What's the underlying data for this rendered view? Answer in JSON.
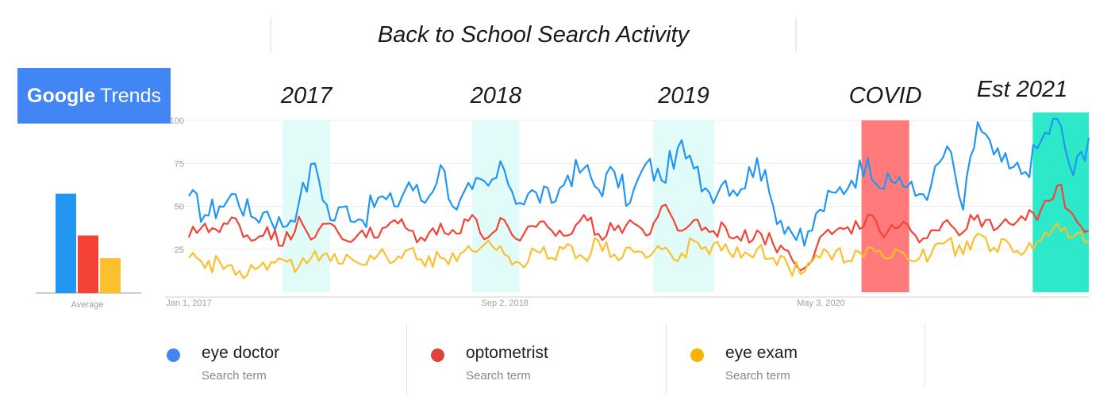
{
  "header": {
    "title": "Back to School Search Activity"
  },
  "logo": {
    "google": "Google",
    "trends": "Trends"
  },
  "chart_data": [
    {
      "type": "bar",
      "xlabel": "Average",
      "series": [
        {
          "name": "eye doctor",
          "color": "#2196f3",
          "value": 57
        },
        {
          "name": "optometrist",
          "color": "#f44336",
          "value": 33
        },
        {
          "name": "eye exam",
          "color": "#fbc02d",
          "value": 20
        }
      ],
      "ylim": [
        0,
        100
      ]
    },
    {
      "type": "line",
      "x_start": "2017-01-01",
      "x_end": "2021-10-01",
      "ylim": [
        0,
        100
      ],
      "yticks": [
        25,
        50,
        75,
        100
      ],
      "grid": true,
      "xtick_labels": [
        {
          "date": "2017-01-01",
          "label": "Jan 1, 2017"
        },
        {
          "date": "2018-09-02",
          "label": "Sep 2, 2018"
        },
        {
          "date": "2020-05-03",
          "label": "May 3, 2020"
        }
      ],
      "highlights": [
        {
          "label": "2017",
          "start": "2017-07-01",
          "end": "2017-09-30",
          "color": "#e0fbf8"
        },
        {
          "label": "2018",
          "start": "2018-07-01",
          "end": "2018-09-30",
          "color": "#e0fbf8"
        },
        {
          "label": "2019",
          "start": "2019-06-15",
          "end": "2019-10-10",
          "color": "#e0fbf8"
        },
        {
          "label": "COVID",
          "start": "2020-07-20",
          "end": "2020-10-20",
          "color": "#ff7b7b"
        },
        {
          "label": "Est 2021",
          "start": "2021-06-15",
          "end": "2021-10-01",
          "color": "#2de8c9"
        }
      ],
      "series": [
        {
          "name": "eye doctor",
          "color": "#2196f3",
          "points": [
            [
              "2017-01-01",
              56
            ],
            [
              "2017-02-01",
              45
            ],
            [
              "2017-03-01",
              50
            ],
            [
              "2017-04-01",
              57
            ],
            [
              "2017-05-01",
              44
            ],
            [
              "2017-06-01",
              47
            ],
            [
              "2017-07-01",
              38
            ],
            [
              "2017-08-01",
              52
            ],
            [
              "2017-09-01",
              75
            ],
            [
              "2017-10-01",
              42
            ],
            [
              "2017-11-01",
              50
            ],
            [
              "2017-12-01",
              42
            ],
            [
              "2018-01-01",
              55
            ],
            [
              "2018-02-01",
              50
            ],
            [
              "2018-03-01",
              64
            ],
            [
              "2018-04-01",
              52
            ],
            [
              "2018-05-01",
              74
            ],
            [
              "2018-06-01",
              48
            ],
            [
              "2018-07-01",
              60
            ],
            [
              "2018-08-01",
              62
            ],
            [
              "2018-09-01",
              71
            ],
            [
              "2018-10-01",
              52
            ],
            [
              "2018-11-01",
              58
            ],
            [
              "2018-12-01",
              52
            ],
            [
              "2019-01-01",
              68
            ],
            [
              "2019-02-01",
              72
            ],
            [
              "2019-03-01",
              60
            ],
            [
              "2019-04-01",
              70
            ],
            [
              "2019-05-01",
              52
            ],
            [
              "2019-06-01",
              75
            ],
            [
              "2019-07-01",
              65
            ],
            [
              "2019-08-01",
              84
            ],
            [
              "2019-09-01",
              72
            ],
            [
              "2019-10-01",
              58
            ],
            [
              "2019-11-01",
              65
            ],
            [
              "2019-12-01",
              60
            ],
            [
              "2020-01-01",
              78
            ],
            [
              "2020-02-01",
              50
            ],
            [
              "2020-03-01",
              38
            ],
            [
              "2020-04-01",
              27
            ],
            [
              "2020-05-01",
              48
            ],
            [
              "2020-06-01",
              58
            ],
            [
              "2020-07-01",
              65
            ],
            [
              "2020-08-01",
              78
            ],
            [
              "2020-09-01",
              60
            ],
            [
              "2020-10-01",
              67
            ],
            [
              "2020-11-01",
              56
            ],
            [
              "2020-12-01",
              62
            ],
            [
              "2021-01-01",
              85
            ],
            [
              "2021-02-01",
              48
            ],
            [
              "2021-03-01",
              99
            ],
            [
              "2021-04-01",
              80
            ],
            [
              "2021-05-01",
              72
            ],
            [
              "2021-06-01",
              70
            ],
            [
              "2021-07-01",
              88
            ],
            [
              "2021-08-01",
              101
            ],
            [
              "2021-09-01",
              68
            ],
            [
              "2021-10-01",
              90
            ]
          ]
        },
        {
          "name": "optometrist",
          "color": "#f44336",
          "points": [
            [
              "2017-01-01",
              32
            ],
            [
              "2017-02-01",
              40
            ],
            [
              "2017-03-01",
              35
            ],
            [
              "2017-04-01",
              43
            ],
            [
              "2017-05-01",
              30
            ],
            [
              "2017-06-01",
              38
            ],
            [
              "2017-07-01",
              27
            ],
            [
              "2017-08-01",
              44
            ],
            [
              "2017-09-01",
              32
            ],
            [
              "2017-10-01",
              40
            ],
            [
              "2017-11-01",
              30
            ],
            [
              "2017-12-01",
              36
            ],
            [
              "2018-01-01",
              32
            ],
            [
              "2018-02-01",
              42
            ],
            [
              "2018-03-01",
              36
            ],
            [
              "2018-04-01",
              30
            ],
            [
              "2018-05-01",
              40
            ],
            [
              "2018-06-01",
              34
            ],
            [
              "2018-07-01",
              45
            ],
            [
              "2018-08-01",
              32
            ],
            [
              "2018-09-01",
              42
            ],
            [
              "2018-10-01",
              30
            ],
            [
              "2018-11-01",
              38
            ],
            [
              "2018-12-01",
              36
            ],
            [
              "2019-01-01",
              33
            ],
            [
              "2019-02-01",
              45
            ],
            [
              "2019-03-01",
              34
            ],
            [
              "2019-04-01",
              36
            ],
            [
              "2019-05-01",
              42
            ],
            [
              "2019-06-01",
              33
            ],
            [
              "2019-07-01",
              50
            ],
            [
              "2019-08-01",
              36
            ],
            [
              "2019-09-01",
              42
            ],
            [
              "2019-10-01",
              35
            ],
            [
              "2019-11-01",
              38
            ],
            [
              "2019-12-01",
              30
            ],
            [
              "2020-01-01",
              36
            ],
            [
              "2020-02-01",
              28
            ],
            [
              "2020-03-01",
              24
            ],
            [
              "2020-04-01",
              14
            ],
            [
              "2020-05-01",
              32
            ],
            [
              "2020-06-01",
              36
            ],
            [
              "2020-07-01",
              34
            ],
            [
              "2020-08-01",
              45
            ],
            [
              "2020-09-01",
              32
            ],
            [
              "2020-10-01",
              38
            ],
            [
              "2020-11-01",
              33
            ],
            [
              "2020-12-01",
              36
            ],
            [
              "2021-01-01",
              42
            ],
            [
              "2021-02-01",
              35
            ],
            [
              "2021-03-01",
              45
            ],
            [
              "2021-04-01",
              36
            ],
            [
              "2021-05-01",
              40
            ],
            [
              "2021-06-01",
              42
            ],
            [
              "2021-07-01",
              48
            ],
            [
              "2021-08-01",
              62
            ],
            [
              "2021-09-01",
              45
            ],
            [
              "2021-10-01",
              36
            ]
          ]
        },
        {
          "name": "eye exam",
          "color": "#fbc02d",
          "points": [
            [
              "2017-01-01",
              20
            ],
            [
              "2017-02-01",
              14
            ],
            [
              "2017-03-01",
              18
            ],
            [
              "2017-04-01",
              10
            ],
            [
              "2017-05-01",
              16
            ],
            [
              "2017-06-01",
              13
            ],
            [
              "2017-07-01",
              19
            ],
            [
              "2017-08-01",
              15
            ],
            [
              "2017-09-01",
              24
            ],
            [
              "2017-10-01",
              18
            ],
            [
              "2017-11-01",
              22
            ],
            [
              "2017-12-01",
              16
            ],
            [
              "2018-01-01",
              22
            ],
            [
              "2018-02-01",
              18
            ],
            [
              "2018-03-01",
              25
            ],
            [
              "2018-04-01",
              15
            ],
            [
              "2018-05-01",
              20
            ],
            [
              "2018-06-01",
              18
            ],
            [
              "2018-07-01",
              24
            ],
            [
              "2018-08-01",
              30
            ],
            [
              "2018-09-01",
              22
            ],
            [
              "2018-10-01",
              17
            ],
            [
              "2018-11-01",
              24
            ],
            [
              "2018-12-01",
              20
            ],
            [
              "2019-01-01",
              28
            ],
            [
              "2019-02-01",
              20
            ],
            [
              "2019-03-01",
              30
            ],
            [
              "2019-04-01",
              22
            ],
            [
              "2019-05-01",
              26
            ],
            [
              "2019-06-01",
              20
            ],
            [
              "2019-07-01",
              25
            ],
            [
              "2019-08-01",
              18
            ],
            [
              "2019-09-01",
              30
            ],
            [
              "2019-10-01",
              22
            ],
            [
              "2019-11-01",
              28
            ],
            [
              "2019-12-01",
              20
            ],
            [
              "2020-01-01",
              25
            ],
            [
              "2020-02-01",
              20
            ],
            [
              "2020-03-01",
              15
            ],
            [
              "2020-04-01",
              12
            ],
            [
              "2020-05-01",
              20
            ],
            [
              "2020-06-01",
              24
            ],
            [
              "2020-07-01",
              18
            ],
            [
              "2020-08-01",
              26
            ],
            [
              "2020-09-01",
              20
            ],
            [
              "2020-10-01",
              24
            ],
            [
              "2020-11-01",
              18
            ],
            [
              "2020-12-01",
              22
            ],
            [
              "2021-01-01",
              30
            ],
            [
              "2021-02-01",
              22
            ],
            [
              "2021-03-01",
              34
            ],
            [
              "2021-04-01",
              26
            ],
            [
              "2021-05-01",
              28
            ],
            [
              "2021-06-01",
              24
            ],
            [
              "2021-07-01",
              30
            ],
            [
              "2021-08-01",
              40
            ],
            [
              "2021-09-01",
              32
            ],
            [
              "2021-10-01",
              30
            ]
          ]
        }
      ]
    }
  ],
  "legend": [
    {
      "name": "eye doctor",
      "sub": "Search term",
      "color": "#4285f4"
    },
    {
      "name": "optometrist",
      "sub": "Search term",
      "color": "#db4437"
    },
    {
      "name": "eye exam",
      "sub": "Search term",
      "color": "#f4b400"
    }
  ]
}
